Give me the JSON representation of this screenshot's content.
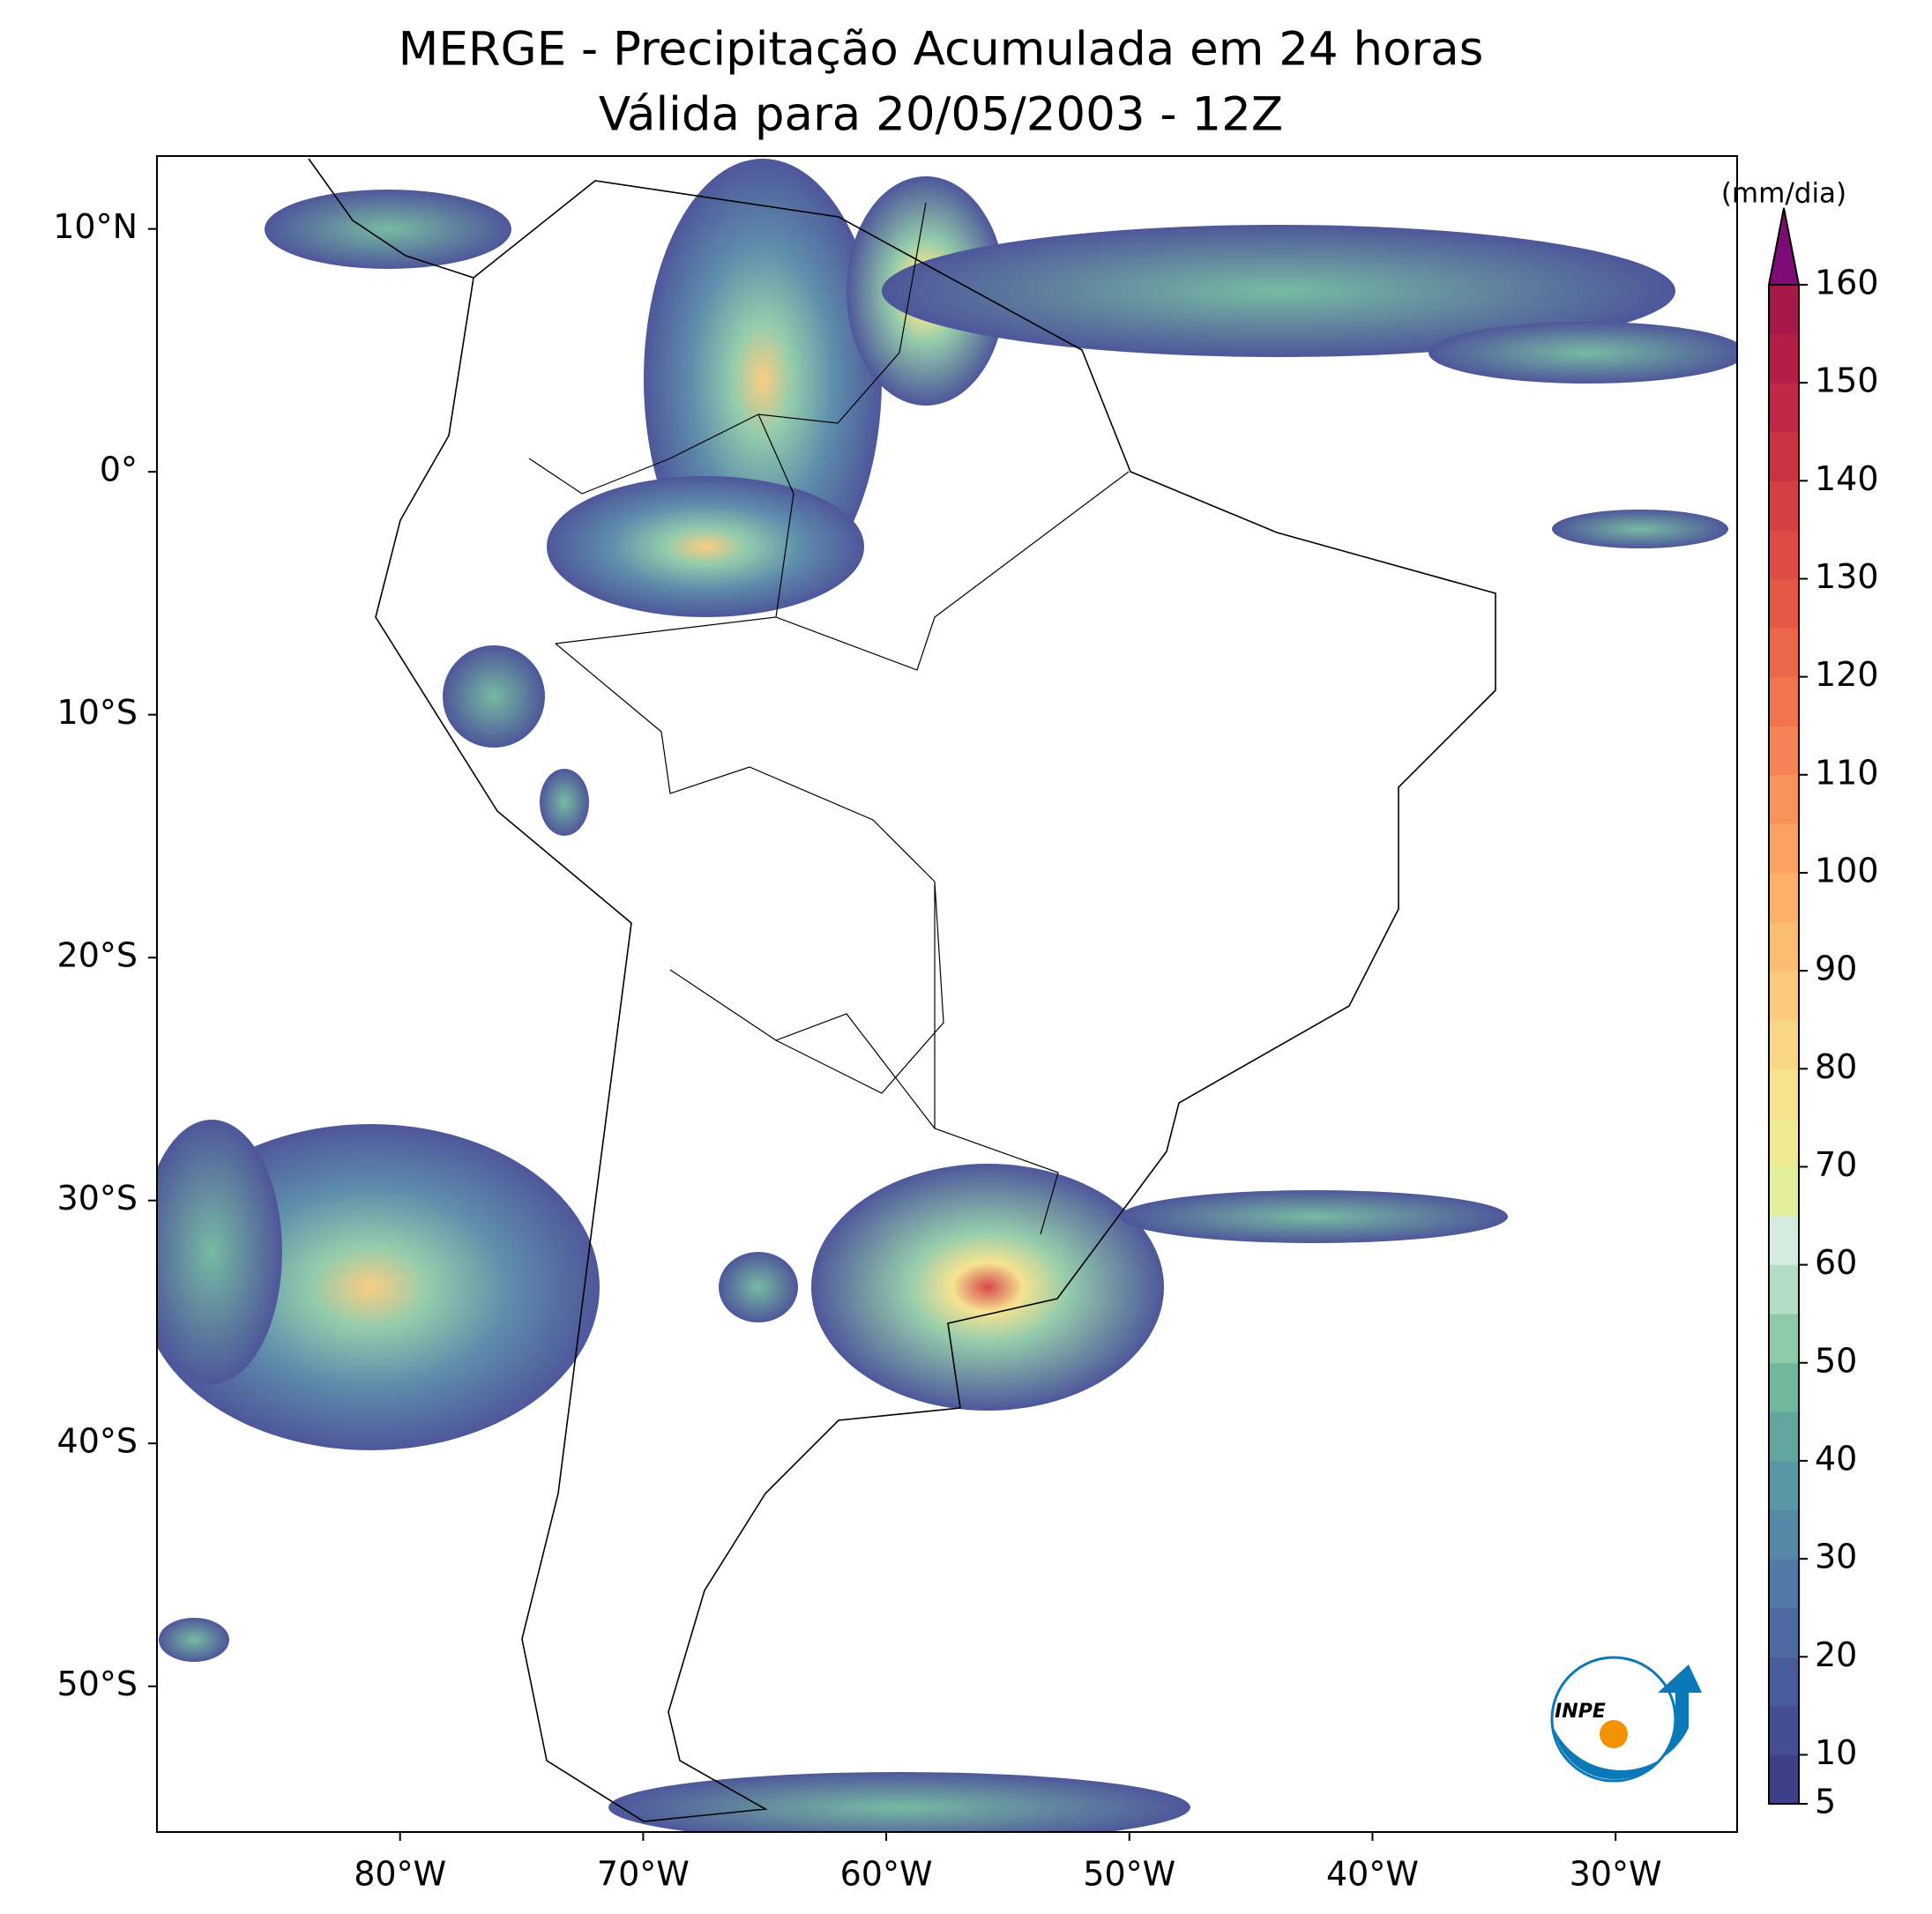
{
  "title": [
    "MERGE - Precipitação Acumulada em 24 horas",
    "Válida para 20/05/2003 - 12Z"
  ],
  "map": {
    "xlim": [
      -90,
      -25
    ],
    "ylim": [
      -56,
      13
    ],
    "xticks": [
      {
        "value": -80,
        "label": "80°W"
      },
      {
        "value": -70,
        "label": "70°W"
      },
      {
        "value": -60,
        "label": "60°W"
      },
      {
        "value": -50,
        "label": "50°W"
      },
      {
        "value": -40,
        "label": "40°W"
      },
      {
        "value": -30,
        "label": "30°W"
      }
    ],
    "yticks": [
      {
        "value": 10,
        "label": "10°N"
      },
      {
        "value": 0,
        "label": "0°"
      },
      {
        "value": -10,
        "label": "10°S"
      },
      {
        "value": -20,
        "label": "20°S"
      },
      {
        "value": -30,
        "label": "30°S"
      },
      {
        "value": -40,
        "label": "40°S"
      },
      {
        "value": -50,
        "label": "50°S"
      }
    ]
  },
  "colorbar": {
    "label": "(mm/dia)",
    "lim": [
      5,
      160
    ],
    "ticks": [
      5,
      10,
      20,
      30,
      40,
      50,
      60,
      70,
      80,
      90,
      100,
      110,
      120,
      130,
      140,
      150,
      160
    ],
    "colors": [
      "#3e3f89",
      "#454e95",
      "#4a5b9b",
      "#4f6aa2",
      "#5379a6",
      "#5688a8",
      "#5a96a6",
      "#62a6a0",
      "#70b79e",
      "#8fcaa8",
      "#b3dcc4",
      "#d4ebe0",
      "#e3ef9a",
      "#eeea91",
      "#f5e28b",
      "#f8d683",
      "#fbca7c",
      "#fcbd73",
      "#fcb069",
      "#fba262",
      "#f8935a",
      "#f58354",
      "#f1744d",
      "#ec6649",
      "#e55846",
      "#dd4b44",
      "#d53f43",
      "#cb3343",
      "#c02845",
      "#b31e47",
      "#a51848"
    ],
    "extend_color": "#7d0b76"
  },
  "logo": "INPE"
}
